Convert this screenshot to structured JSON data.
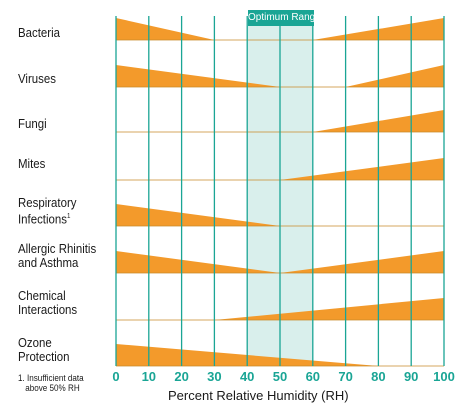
{
  "chart_data": {
    "type": "area",
    "xlabel": "Percent Relative Humidity (RH)",
    "x_ticks": [
      "0",
      "10",
      "20",
      "30",
      "40",
      "50",
      "60",
      "70",
      "80",
      "90",
      "100"
    ],
    "xlim": [
      0,
      100
    ],
    "optimum_range": {
      "label": "Optimum Range",
      "from": 40,
      "to": 60
    },
    "footnote_lines": [
      "1. Insufficient data",
      "above 50% RH"
    ],
    "colors": {
      "fill": "#f39a2b",
      "accent": "#1aa595",
      "band": "#d9efec",
      "baseline": "#c98a2a"
    },
    "series": [
      {
        "name": "Bacteria",
        "label_lines": [
          "Bacteria"
        ],
        "points": [
          [
            0,
            1
          ],
          [
            30,
            0
          ],
          [
            60,
            0
          ],
          [
            100,
            1
          ]
        ]
      },
      {
        "name": "Viruses",
        "label_lines": [
          "Viruses"
        ],
        "points": [
          [
            0,
            1
          ],
          [
            50,
            0
          ],
          [
            70,
            0
          ],
          [
            100,
            1
          ]
        ]
      },
      {
        "name": "Fungi",
        "label_lines": [
          "Fungi"
        ],
        "points": [
          [
            0,
            0
          ],
          [
            60,
            0
          ],
          [
            100,
            1
          ]
        ]
      },
      {
        "name": "Mites",
        "label_lines": [
          "Mites"
        ],
        "points": [
          [
            0,
            0
          ],
          [
            50,
            0
          ],
          [
            100,
            1
          ]
        ]
      },
      {
        "name": "Respiratory Infections",
        "label_lines": [
          "Respiratory",
          "Infections"
        ],
        "footnote_mark": "1",
        "points": [
          [
            0,
            1
          ],
          [
            50,
            0
          ],
          [
            100,
            0
          ]
        ]
      },
      {
        "name": "Allergic Rhinitis and Asthma",
        "label_lines": [
          "Allergic Rhinitis",
          "and Asthma"
        ],
        "points": [
          [
            0,
            1
          ],
          [
            50,
            0
          ],
          [
            100,
            1
          ]
        ]
      },
      {
        "name": "Chemical Interactions",
        "label_lines": [
          "Chemical",
          "Interactions"
        ],
        "points": [
          [
            0,
            0
          ],
          [
            30,
            0
          ],
          [
            100,
            1
          ]
        ]
      },
      {
        "name": "Ozone Protection",
        "label_lines": [
          "Ozone",
          "Protection"
        ],
        "points": [
          [
            0,
            1
          ],
          [
            80,
            0
          ],
          [
            100,
            0
          ]
        ]
      }
    ]
  }
}
